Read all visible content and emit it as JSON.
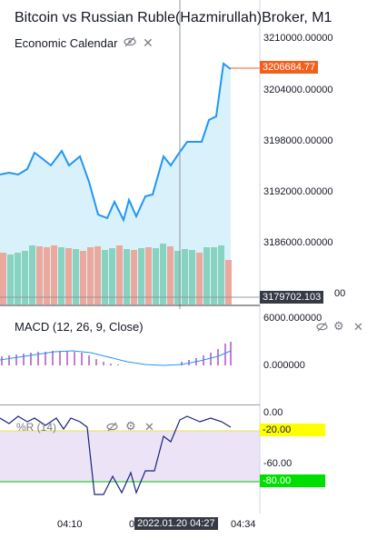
{
  "header": {
    "title": "Bitcoin vs Russian Ruble(Hazmirullah)Broker, M1",
    "indicator_label": "Economic Calendar"
  },
  "price_axis": {
    "ticks": [
      "3210000.00000",
      "3204000.00000",
      "3198000.00000",
      "3192000.00000",
      "3186000.00000"
    ],
    "partial_tick": "00",
    "last_price": "3206684.77",
    "cursor_price": "3179702.103"
  },
  "macd": {
    "label": "MACD (12, 26, 9, Close)",
    "ticks": [
      "6000.000000",
      "0.000000"
    ]
  },
  "wr": {
    "label": "%R (14)",
    "ticks": [
      "0.00",
      "-20.00",
      "-60.00",
      "-80.00"
    ]
  },
  "time_axis": {
    "ticks": [
      "04:10",
      "0",
      "04:34"
    ],
    "cursor_time": "2022.01.20 04:27"
  },
  "colors": {
    "line": "#2196f3",
    "area": "#d6f0fb",
    "last_price": "#f25f1c",
    "vol_up": "#88d3bf",
    "vol_down": "#eba89c",
    "macd_hist": "#9c27b0",
    "wr_line": "#1a237e",
    "wr_band": "#ece3f7",
    "wr_top": "#ffff00",
    "wr_bottom": "#00e000"
  },
  "icons": [
    "eye-off-icon",
    "close-icon",
    "gear-icon"
  ]
}
